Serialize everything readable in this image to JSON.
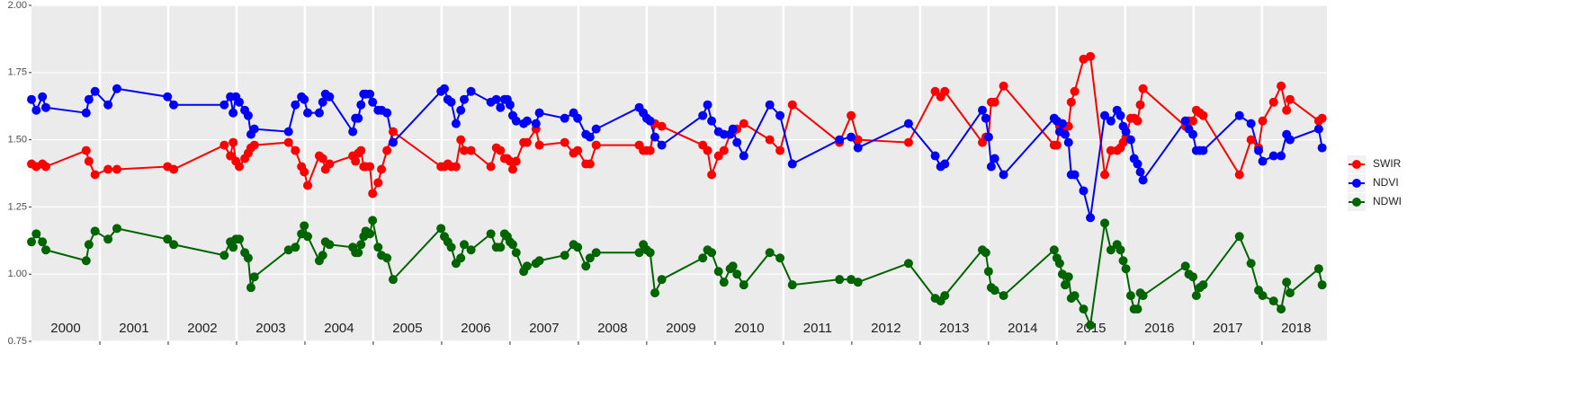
{
  "chart_data": {
    "type": "line",
    "x": [
      2000.0,
      2000.07,
      2000.16,
      2000.21,
      2000.8,
      2000.84,
      2000.93,
      2001.12,
      2001.25,
      2001.99,
      2002.08,
      2002.82,
      2002.91,
      2002.95,
      2002.99,
      2003.04,
      2003.12,
      2003.17,
      2003.21,
      2003.26,
      2003.76,
      2003.86,
      2003.95,
      2003.99,
      2004.04,
      2004.21,
      2004.26,
      2004.3,
      2004.36,
      2004.7,
      2004.74,
      2004.78,
      2004.82,
      2004.86,
      2004.89,
      2004.95,
      2004.99,
      2005.07,
      2005.12,
      2005.2,
      2005.29,
      2005.99,
      2006.04,
      2006.09,
      2006.14,
      2006.21,
      2006.28,
      2006.33,
      2006.43,
      2006.72,
      2006.8,
      2006.86,
      2006.92,
      2006.96,
      2007.0,
      2007.04,
      2007.09,
      2007.2,
      2007.25,
      2007.38,
      2007.43,
      2007.8,
      2007.93,
      2007.99,
      2008.11,
      2008.17,
      2008.26,
      2008.89,
      2008.95,
      2009.0,
      2009.05,
      2009.12,
      2009.22,
      2009.82,
      2009.89,
      2009.95,
      2010.05,
      2010.13,
      2010.22,
      2010.26,
      2010.32,
      2010.42,
      2010.8,
      2010.95,
      2011.13,
      2011.82,
      2011.99,
      2012.09,
      2012.83,
      2013.22,
      2013.3,
      2013.36,
      2013.91,
      2013.96,
      2014.0,
      2014.04,
      2014.09,
      2014.22,
      2014.96,
      2015.0,
      2015.04,
      2015.08,
      2015.12,
      2015.17,
      2015.21,
      2015.26,
      2015.39,
      2015.49,
      2015.7,
      2015.79,
      2015.88,
      2015.93,
      2015.97,
      2016.01,
      2016.08,
      2016.13,
      2016.18,
      2016.22,
      2016.26,
      2016.88,
      2016.93,
      2016.99,
      2017.04,
      2017.09,
      2017.14,
      2017.67,
      2017.84,
      2017.95,
      2018.01,
      2018.17,
      2018.28,
      2018.36,
      2018.41,
      2018.83,
      2018.88
    ],
    "series": [
      {
        "name": "SWIR",
        "color": "#ff0000",
        "values": [
          1.41,
          1.4,
          1.41,
          1.4,
          1.46,
          1.42,
          1.37,
          1.39,
          1.39,
          1.4,
          1.39,
          1.48,
          1.44,
          1.49,
          1.42,
          1.4,
          1.43,
          1.45,
          1.47,
          1.48,
          1.49,
          1.46,
          1.4,
          1.38,
          1.33,
          1.44,
          1.43,
          1.39,
          1.41,
          1.44,
          1.42,
          1.45,
          1.46,
          1.4,
          1.4,
          1.4,
          1.3,
          1.34,
          1.39,
          1.46,
          1.53,
          1.4,
          1.4,
          1.41,
          1.4,
          1.4,
          1.5,
          1.46,
          1.46,
          1.4,
          1.47,
          1.46,
          1.43,
          1.43,
          1.42,
          1.39,
          1.42,
          1.49,
          1.49,
          1.54,
          1.48,
          1.49,
          1.45,
          1.46,
          1.41,
          1.41,
          1.48,
          1.48,
          1.46,
          1.46,
          1.46,
          1.56,
          1.55,
          1.48,
          1.46,
          1.37,
          1.44,
          1.46,
          1.52,
          1.53,
          1.54,
          1.56,
          1.5,
          1.46,
          1.63,
          1.49,
          1.59,
          1.5,
          1.49,
          1.68,
          1.66,
          1.68,
          1.49,
          1.51,
          1.51,
          1.64,
          1.64,
          1.7,
          1.48,
          1.48,
          1.55,
          1.54,
          1.52,
          1.55,
          1.64,
          1.68,
          1.8,
          1.81,
          1.37,
          1.46,
          1.46,
          1.47,
          1.49,
          1.51,
          1.58,
          1.58,
          1.57,
          1.63,
          1.69,
          1.55,
          1.57,
          1.57,
          1.61,
          1.6,
          1.59,
          1.37,
          1.5,
          1.47,
          1.57,
          1.64,
          1.7,
          1.61,
          1.65,
          1.57,
          1.58
        ]
      },
      {
        "name": "NDVI",
        "color": "#0000ff",
        "values": [
          1.65,
          1.61,
          1.66,
          1.62,
          1.6,
          1.65,
          1.68,
          1.63,
          1.69,
          1.66,
          1.63,
          1.63,
          1.66,
          1.6,
          1.66,
          1.64,
          1.61,
          1.59,
          1.52,
          1.54,
          1.53,
          1.63,
          1.66,
          1.65,
          1.6,
          1.6,
          1.64,
          1.67,
          1.66,
          1.53,
          1.58,
          1.58,
          1.63,
          1.67,
          1.67,
          1.67,
          1.64,
          1.61,
          1.61,
          1.6,
          1.49,
          1.68,
          1.69,
          1.65,
          1.64,
          1.56,
          1.61,
          1.65,
          1.68,
          1.64,
          1.65,
          1.62,
          1.65,
          1.65,
          1.63,
          1.59,
          1.57,
          1.56,
          1.57,
          1.56,
          1.6,
          1.58,
          1.6,
          1.58,
          1.52,
          1.51,
          1.54,
          1.62,
          1.6,
          1.58,
          1.57,
          1.51,
          1.48,
          1.59,
          1.63,
          1.57,
          1.53,
          1.52,
          1.52,
          1.54,
          1.49,
          1.44,
          1.63,
          1.59,
          1.41,
          1.5,
          1.51,
          1.47,
          1.56,
          1.44,
          1.4,
          1.41,
          1.61,
          1.58,
          1.51,
          1.4,
          1.43,
          1.37,
          1.58,
          1.57,
          1.53,
          1.56,
          1.52,
          1.49,
          1.37,
          1.37,
          1.31,
          1.21,
          1.59,
          1.57,
          1.61,
          1.59,
          1.55,
          1.53,
          1.5,
          1.43,
          1.41,
          1.38,
          1.35,
          1.57,
          1.54,
          1.52,
          1.46,
          1.46,
          1.46,
          1.59,
          1.56,
          1.46,
          1.42,
          1.44,
          1.44,
          1.52,
          1.5,
          1.54,
          1.47
        ]
      },
      {
        "name": "NDWI",
        "color": "#006400",
        "values": [
          1.12,
          1.15,
          1.12,
          1.09,
          1.05,
          1.11,
          1.16,
          1.13,
          1.17,
          1.13,
          1.11,
          1.07,
          1.12,
          1.1,
          1.13,
          1.13,
          1.08,
          1.06,
          0.95,
          0.99,
          1.09,
          1.1,
          1.15,
          1.18,
          1.14,
          1.05,
          1.07,
          1.12,
          1.11,
          1.1,
          1.08,
          1.08,
          1.11,
          1.14,
          1.16,
          1.15,
          1.2,
          1.1,
          1.07,
          1.06,
          0.98,
          1.17,
          1.14,
          1.12,
          1.1,
          1.04,
          1.06,
          1.11,
          1.09,
          1.15,
          1.1,
          1.1,
          1.15,
          1.14,
          1.12,
          1.11,
          1.08,
          1.01,
          1.03,
          1.04,
          1.05,
          1.07,
          1.11,
          1.1,
          1.03,
          1.06,
          1.08,
          1.08,
          1.11,
          1.09,
          1.08,
          0.93,
          0.98,
          1.06,
          1.09,
          1.08,
          1.01,
          0.97,
          1.02,
          1.03,
          1.0,
          0.96,
          1.08,
          1.06,
          0.96,
          0.98,
          0.98,
          0.97,
          1.04,
          0.91,
          0.9,
          0.92,
          1.09,
          1.08,
          1.01,
          0.95,
          0.94,
          0.92,
          1.09,
          1.06,
          1.04,
          1.0,
          0.96,
          0.99,
          0.91,
          0.92,
          0.87,
          0.81,
          1.19,
          1.09,
          1.11,
          1.09,
          1.05,
          1.02,
          0.92,
          0.87,
          0.87,
          0.93,
          0.92,
          1.03,
          1.0,
          0.99,
          0.92,
          0.95,
          0.96,
          1.14,
          1.04,
          0.94,
          0.92,
          0.9,
          0.87,
          0.97,
          0.93,
          1.02,
          0.96
        ]
      }
    ],
    "xlim": [
      2000,
      2018.95
    ],
    "xticks": [
      2001,
      2002,
      2003,
      2004,
      2005,
      2006,
      2007,
      2008,
      2009,
      2010,
      2011,
      2012,
      2013,
      2014,
      2015,
      2016,
      2017,
      2018
    ],
    "year_labels": [
      {
        "value": 2000.5,
        "label": "2000"
      },
      {
        "value": 2001.5,
        "label": "2001"
      },
      {
        "value": 2002.5,
        "label": "2002"
      },
      {
        "value": 2003.5,
        "label": "2003"
      },
      {
        "value": 2004.5,
        "label": "2004"
      },
      {
        "value": 2005.5,
        "label": "2005"
      },
      {
        "value": 2006.5,
        "label": "2006"
      },
      {
        "value": 2007.5,
        "label": "2007"
      },
      {
        "value": 2008.5,
        "label": "2008"
      },
      {
        "value": 2009.5,
        "label": "2009"
      },
      {
        "value": 2010.5,
        "label": "2010"
      },
      {
        "value": 2011.5,
        "label": "2011"
      },
      {
        "value": 2012.5,
        "label": "2012"
      },
      {
        "value": 2013.5,
        "label": "2013"
      },
      {
        "value": 2014.5,
        "label": "2014"
      },
      {
        "value": 2015.5,
        "label": "2015"
      },
      {
        "value": 2016.5,
        "label": "2016"
      },
      {
        "value": 2017.5,
        "label": "2017"
      },
      {
        "value": 2018.5,
        "label": "2018"
      }
    ],
    "ylim": [
      0.75,
      2.0
    ],
    "yticks": [
      0.75,
      {
        "value": 1.0,
        "label": "1.00"
      },
      1.25,
      {
        "value": 1.5,
        "label": "1.50"
      },
      1.75,
      {
        "value": 2.0,
        "label": "2.00"
      }
    ],
    "grid": true,
    "legend": "right"
  }
}
